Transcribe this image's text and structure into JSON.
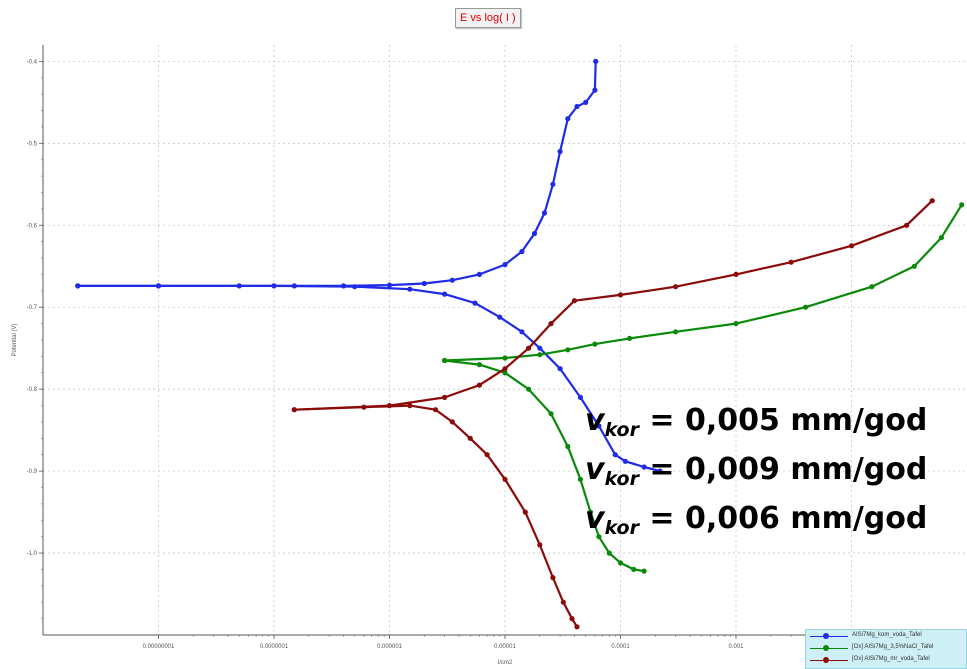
{
  "chart_data": {
    "type": "scatter",
    "title": "E vs log( I )",
    "xlabel": "I/cm2",
    "ylabel": "Potential (V)",
    "xscale": "log",
    "xlim": [
      1e-09,
      0.1
    ],
    "ylim": [
      -1.1,
      -0.38
    ],
    "grid": true,
    "x_ticks": [
      "0.00000001",
      "0.0000001",
      "0.000001",
      "0.00001",
      "0.0001",
      "0.001",
      "0.01"
    ],
    "y_ticks": [
      "-0.4",
      "-0.5",
      "-0.6",
      "-0.7",
      "-0.8",
      "-0.9",
      "-1.0"
    ],
    "legend_position": "bottom-right",
    "series": [
      {
        "name": "AISi7Mg_kom_voda_Tafel",
        "color": "#1f2be6",
        "anodic": [
          [
            2e-09,
            -0.674
          ],
          [
            1e-08,
            -0.674
          ],
          [
            5e-08,
            -0.674
          ],
          [
            1.5e-07,
            -0.674
          ],
          [
            4e-07,
            -0.674
          ],
          [
            1e-06,
            -0.673
          ],
          [
            2e-06,
            -0.671
          ],
          [
            3.5e-06,
            -0.667
          ],
          [
            6e-06,
            -0.66
          ],
          [
            1e-05,
            -0.648
          ],
          [
            1.4e-05,
            -0.632
          ],
          [
            1.8e-05,
            -0.61
          ],
          [
            2.2e-05,
            -0.585
          ],
          [
            2.6e-05,
            -0.55
          ],
          [
            3e-05,
            -0.51
          ],
          [
            3.5e-05,
            -0.47
          ],
          [
            4.2e-05,
            -0.455
          ],
          [
            5e-05,
            -0.45
          ],
          [
            6e-05,
            -0.435
          ],
          [
            6.1e-05,
            -0.4
          ]
        ],
        "cathodic": [
          [
            2e-09,
            -0.674
          ],
          [
            1e-08,
            -0.674
          ],
          [
            1e-07,
            -0.674
          ],
          [
            5e-07,
            -0.675
          ],
          [
            1.5e-06,
            -0.678
          ],
          [
            3e-06,
            -0.684
          ],
          [
            5.5e-06,
            -0.695
          ],
          [
            9e-06,
            -0.712
          ],
          [
            1.4e-05,
            -0.73
          ],
          [
            2e-05,
            -0.75
          ],
          [
            3e-05,
            -0.775
          ],
          [
            4.5e-05,
            -0.81
          ],
          [
            6.5e-05,
            -0.845
          ],
          [
            9e-05,
            -0.88
          ],
          [
            0.00011,
            -0.888
          ],
          [
            0.00016,
            -0.895
          ],
          [
            0.00022,
            -0.9
          ]
        ]
      },
      {
        "name": "[Ox] AISi7Mg_3,5%NaCl_Tafel",
        "color": "#0a8a0a",
        "anodic": [
          [
            3e-06,
            -0.765
          ],
          [
            1e-05,
            -0.762
          ],
          [
            2e-05,
            -0.758
          ],
          [
            3.5e-05,
            -0.752
          ],
          [
            6e-05,
            -0.745
          ],
          [
            0.00012,
            -0.738
          ],
          [
            0.0003,
            -0.73
          ],
          [
            0.001,
            -0.72
          ],
          [
            0.004,
            -0.7
          ],
          [
            0.015,
            -0.675
          ],
          [
            0.035,
            -0.65
          ],
          [
            0.06,
            -0.615
          ],
          [
            0.09,
            -0.575
          ]
        ],
        "cathodic": [
          [
            3e-06,
            -0.765
          ],
          [
            6e-06,
            -0.77
          ],
          [
            1e-05,
            -0.78
          ],
          [
            1.6e-05,
            -0.8
          ],
          [
            2.5e-05,
            -0.83
          ],
          [
            3.5e-05,
            -0.87
          ],
          [
            4.5e-05,
            -0.91
          ],
          [
            5.5e-05,
            -0.95
          ],
          [
            6.5e-05,
            -0.98
          ],
          [
            8e-05,
            -1.0
          ],
          [
            0.0001,
            -1.012
          ],
          [
            0.00013,
            -1.02
          ],
          [
            0.00016,
            -1.022
          ]
        ]
      },
      {
        "name": "[Ox] AISi7Mg_mr_voda_Tafel",
        "color": "#8b0a0a",
        "anodic": [
          [
            1.5e-07,
            -0.825
          ],
          [
            1e-06,
            -0.82
          ],
          [
            3e-06,
            -0.81
          ],
          [
            6e-06,
            -0.795
          ],
          [
            1e-05,
            -0.775
          ],
          [
            1.6e-05,
            -0.75
          ],
          [
            2.5e-05,
            -0.72
          ],
          [
            4e-05,
            -0.692
          ],
          [
            0.0001,
            -0.685
          ],
          [
            0.0003,
            -0.675
          ],
          [
            0.001,
            -0.66
          ],
          [
            0.003,
            -0.645
          ],
          [
            0.01,
            -0.625
          ],
          [
            0.03,
            -0.6
          ],
          [
            0.05,
            -0.57
          ]
        ],
        "cathodic": [
          [
            1.5e-07,
            -0.825
          ],
          [
            6e-07,
            -0.822
          ],
          [
            1.5e-06,
            -0.82
          ],
          [
            2.5e-06,
            -0.825
          ],
          [
            3.5e-06,
            -0.84
          ],
          [
            5e-06,
            -0.86
          ],
          [
            7e-06,
            -0.88
          ],
          [
            1e-05,
            -0.91
          ],
          [
            1.5e-05,
            -0.95
          ],
          [
            2e-05,
            -0.99
          ],
          [
            2.6e-05,
            -1.03
          ],
          [
            3.2e-05,
            -1.06
          ],
          [
            3.8e-05,
            -1.08
          ],
          [
            4.2e-05,
            -1.09
          ]
        ]
      }
    ]
  },
  "annotations": [
    {
      "v": "v",
      "sub": "kor",
      "text": " = 0,005 mm/god",
      "color": "#1e7bc8"
    },
    {
      "v": "v",
      "sub": "kor",
      "text": " = 0,009 mm/god",
      "color": "#1a9a3c"
    },
    {
      "v": "v",
      "sub": "kor",
      "text": " = 0,006 mm/god",
      "color": "#b01414"
    }
  ]
}
